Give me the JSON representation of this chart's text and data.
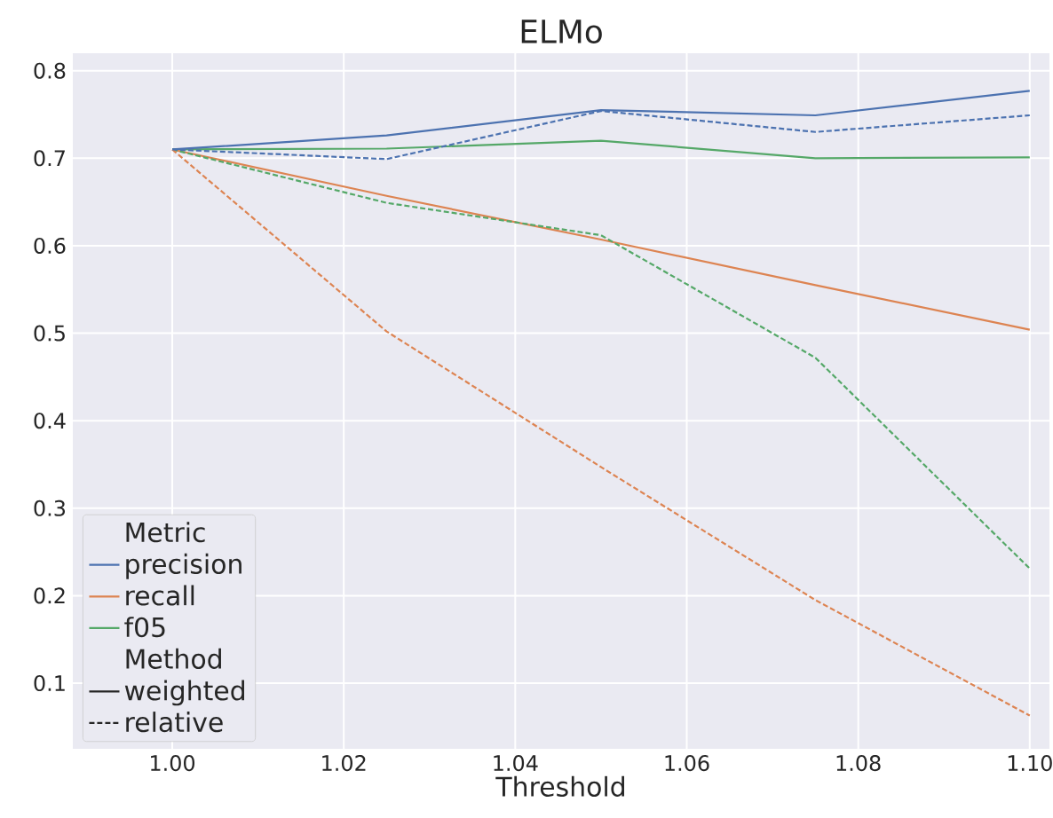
{
  "chart_data": {
    "type": "line",
    "title": "ELMo",
    "xlabel": "Threshold",
    "x": [
      1.0,
      1.025,
      1.05,
      1.075,
      1.1
    ],
    "series": [
      {
        "name": "precision",
        "color": "#4c72b0",
        "line_style": "solid",
        "values": [
          0.71,
          0.726,
          0.755,
          0.749,
          0.777
        ]
      },
      {
        "color": "#4c72b0",
        "line_style": "dashed",
        "values": [
          0.71,
          0.699,
          0.754,
          0.73,
          0.749
        ]
      },
      {
        "name": "recall",
        "color": "#dd8452",
        "line_style": "solid",
        "values": [
          0.71,
          0.657,
          0.607,
          0.555,
          0.504
        ]
      },
      {
        "color": "#dd8452",
        "line_style": "dashed",
        "values": [
          0.71,
          0.502,
          0.347,
          0.195,
          0.063
        ]
      },
      {
        "name": "f05",
        "color": "#55a868",
        "line_style": "solid",
        "values": [
          0.71,
          0.711,
          0.72,
          0.7,
          0.701
        ]
      },
      {
        "color": "#55a868",
        "line_style": "dashed",
        "values": [
          0.71,
          0.649,
          0.612,
          0.472,
          0.231
        ]
      }
    ],
    "legend_title": "Metric",
    "annotations": [
      "Method",
      "weighted",
      "relative"
    ],
    "xlim": [
      0.9884,
      1.1023
    ],
    "ylim": [
      0.025,
      0.82
    ],
    "xticks": [
      {
        "value": 1.0,
        "label": "1.00"
      },
      {
        "value": 1.02,
        "label": "1.02"
      },
      {
        "value": 1.04,
        "label": "1.04"
      },
      {
        "value": 1.06,
        "label": "1.06"
      },
      {
        "value": 1.08,
        "label": "1.08"
      },
      {
        "value": 1.1,
        "label": "1.10"
      }
    ],
    "yticks": [
      0.1,
      0.2,
      0.3,
      0.4,
      0.5,
      0.6,
      0.7,
      0.8
    ],
    "grid": true,
    "legend": "bottom left",
    "marker": "none"
  }
}
